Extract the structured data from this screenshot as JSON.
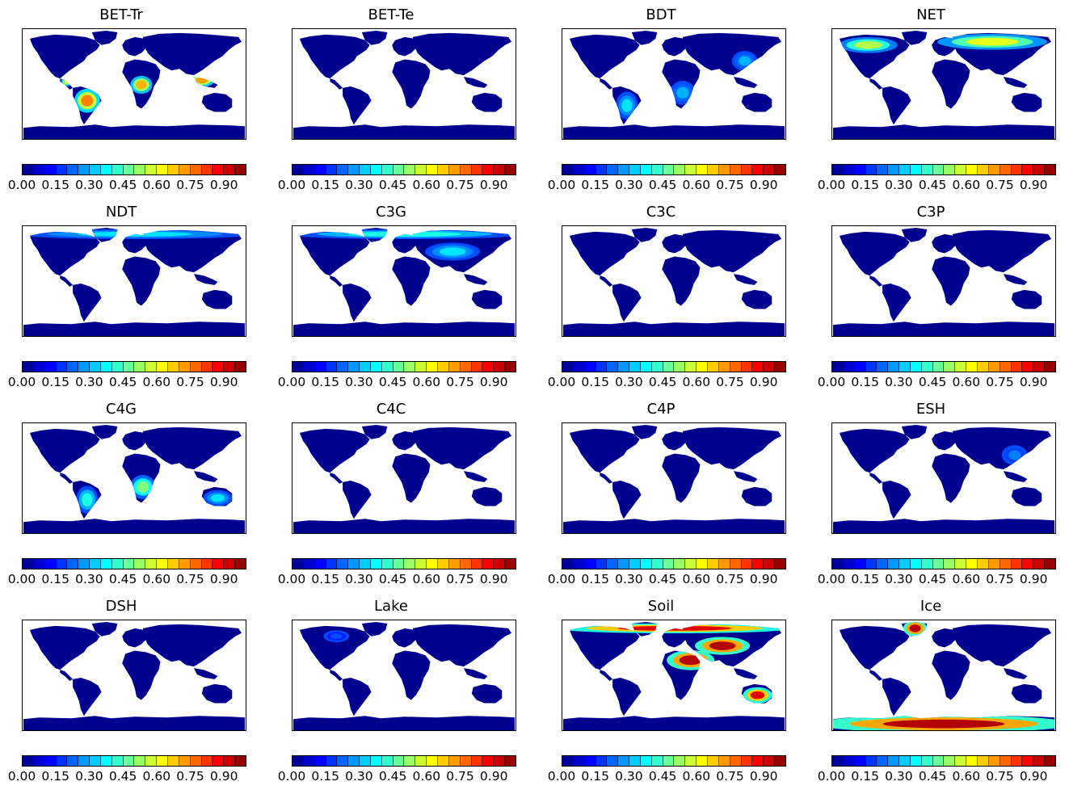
{
  "figure": {
    "colormap_name": "jet",
    "colorbar_levels": 20,
    "value_range": [
      0,
      1
    ],
    "tick_labels": [
      "0.00",
      "0.15",
      "0.30",
      "0.45",
      "0.60",
      "0.75",
      "0.90"
    ],
    "ocean_color": "#ffffff",
    "background_land_color": "#00008f"
  },
  "panels": [
    {
      "id": "bet-tr",
      "title": "BET-Tr",
      "hotspots": [
        {
          "region": "amazon",
          "level": 0.75
        },
        {
          "region": "central-africa",
          "level": 0.7
        },
        {
          "region": "se-asia",
          "level": 0.72
        },
        {
          "region": "central-america",
          "level": 0.6
        }
      ]
    },
    {
      "id": "bet-te",
      "title": "BET-Te",
      "hotspots": []
    },
    {
      "id": "bdt",
      "title": "BDT",
      "hotspots": [
        {
          "region": "south-america",
          "level": 0.35
        },
        {
          "region": "africa-savanna",
          "level": 0.3
        },
        {
          "region": "east-asia",
          "level": 0.3
        }
      ]
    },
    {
      "id": "net",
      "title": "NET",
      "hotspots": [
        {
          "region": "boreal-na",
          "level": 0.55
        },
        {
          "region": "boreal-eurasia",
          "level": 0.6
        }
      ]
    },
    {
      "id": "ndt",
      "title": "NDT",
      "hotspots": [
        {
          "region": "arctic",
          "level": 0.35
        }
      ]
    },
    {
      "id": "c3g",
      "title": "C3G",
      "hotspots": [
        {
          "region": "arctic",
          "level": 0.4
        },
        {
          "region": "central-asia",
          "level": 0.35
        }
      ]
    },
    {
      "id": "c3c",
      "title": "C3C",
      "hotspots": []
    },
    {
      "id": "c3p",
      "title": "C3P",
      "hotspots": []
    },
    {
      "id": "c4g",
      "title": "C4G",
      "hotspots": [
        {
          "region": "africa-savanna",
          "level": 0.5
        },
        {
          "region": "south-america",
          "level": 0.4
        },
        {
          "region": "australia",
          "level": 0.35
        }
      ]
    },
    {
      "id": "c4c",
      "title": "C4C",
      "hotspots": []
    },
    {
      "id": "c4p",
      "title": "C4P",
      "hotspots": []
    },
    {
      "id": "esh",
      "title": "ESH",
      "hotspots": [
        {
          "region": "east-asia",
          "level": 0.25
        }
      ]
    },
    {
      "id": "dsh",
      "title": "DSH",
      "hotspots": []
    },
    {
      "id": "lake",
      "title": "Lake",
      "hotspots": [
        {
          "region": "canada-lakes",
          "level": 0.2
        }
      ]
    },
    {
      "id": "soil",
      "title": "Soil",
      "hotspots": [
        {
          "region": "sahara-arabia",
          "level": 0.95
        },
        {
          "region": "arctic",
          "level": 0.9
        },
        {
          "region": "australia",
          "level": 0.9
        },
        {
          "region": "central-asia",
          "level": 0.95
        }
      ]
    },
    {
      "id": "ice",
      "title": "Ice",
      "hotspots": [
        {
          "region": "greenland",
          "level": 0.95
        },
        {
          "region": "antarctica",
          "level": 0.95
        }
      ]
    }
  ]
}
